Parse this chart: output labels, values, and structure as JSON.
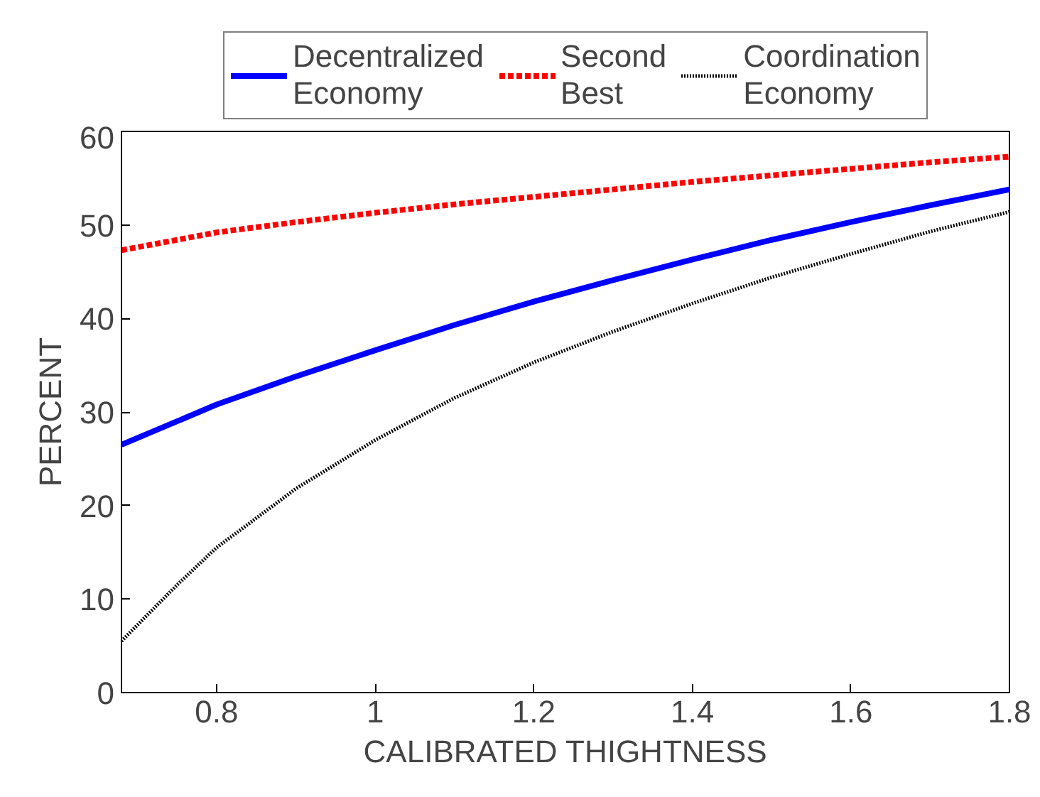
{
  "chart_data": {
    "type": "line",
    "xlabel": "CALIBRATED THIGHTNESS",
    "ylabel": "PERCENT",
    "x": [
      0.68,
      0.75,
      0.8,
      0.9,
      1.0,
      1.1,
      1.2,
      1.3,
      1.4,
      1.5,
      1.6,
      1.7,
      1.8
    ],
    "series": [
      {
        "name": "Decentralized Economy",
        "color": "#0000ff",
        "line_style": "solid",
        "values": [
          26.5,
          29,
          30.8,
          33.8,
          36.6,
          39.3,
          41.8,
          44.1,
          46.3,
          48.4,
          50.3,
          52.1,
          53.8
        ]
      },
      {
        "name": "Second Best",
        "color": "#ff0000",
        "line_style": "dashed",
        "values": [
          47.3,
          48.4,
          49.2,
          50.3,
          51.3,
          52.2,
          53.0,
          53.8,
          54.6,
          55.3,
          56.0,
          56.7,
          57.3
        ]
      },
      {
        "name": "Coordination Economy",
        "color": "#000000",
        "line_style": "dotted",
        "values": [
          5.5,
          11.5,
          15.5,
          21.8,
          27,
          31.5,
          35.3,
          38.6,
          41.6,
          44.4,
          46.9,
          49.3,
          51.4
        ]
      }
    ],
    "xlim": [
      0.68,
      1.8
    ],
    "xticks": [
      0.8,
      1,
      1.2,
      1.4,
      1.6,
      1.8
    ],
    "ylim": [
      0,
      60
    ],
    "yticks": [
      0,
      10,
      20,
      30,
      40,
      50,
      60
    ],
    "grid": false,
    "legend": "top",
    "marker": "none"
  }
}
